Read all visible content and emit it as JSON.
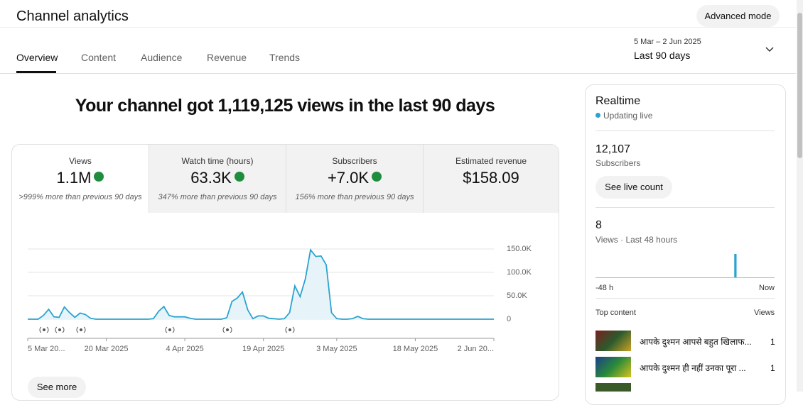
{
  "header": {
    "title": "Channel analytics",
    "button": "Advanced mode"
  },
  "tabs": [
    "Overview",
    "Content",
    "Audience",
    "Revenue",
    "Trends"
  ],
  "date_range": {
    "dates": "5 Mar – 2 Jun 2025",
    "label": "Last 90 days"
  },
  "headline": "Your channel got 1,119,125 views in the last 90 days",
  "metrics": [
    {
      "label": "Views",
      "value": "1.1M",
      "change": ">999% more than previous 90 days"
    },
    {
      "label": "Watch time (hours)",
      "value": "63.3K",
      "change": "347% more than previous 90 days"
    },
    {
      "label": "Subscribers",
      "value": "+7.0K",
      "change": "156% more than previous 90 days"
    },
    {
      "label": "Estimated revenue",
      "value": "$158.09"
    }
  ],
  "chart_data": {
    "type": "line",
    "color": "#2ba3cf",
    "categories": [
      "2025-03-05",
      "2025-03-06",
      "2025-03-07",
      "2025-03-08",
      "2025-03-09",
      "2025-03-10",
      "2025-03-11",
      "2025-03-12",
      "2025-03-13",
      "2025-03-14",
      "2025-03-15",
      "2025-03-16",
      "2025-03-17",
      "2025-03-18",
      "2025-03-19",
      "2025-03-20",
      "2025-03-21",
      "2025-03-22",
      "2025-03-23",
      "2025-03-24",
      "2025-03-25",
      "2025-03-26",
      "2025-03-27",
      "2025-03-28",
      "2025-03-29",
      "2025-03-30",
      "2025-03-31",
      "2025-04-01",
      "2025-04-02",
      "2025-04-03",
      "2025-04-04",
      "2025-04-05",
      "2025-04-06",
      "2025-04-07",
      "2025-04-08",
      "2025-04-09",
      "2025-04-10",
      "2025-04-11",
      "2025-04-12",
      "2025-04-13",
      "2025-04-14",
      "2025-04-15",
      "2025-04-16",
      "2025-04-17",
      "2025-04-18",
      "2025-04-19",
      "2025-04-20",
      "2025-04-21",
      "2025-04-22",
      "2025-04-23",
      "2025-04-24",
      "2025-04-25",
      "2025-04-26",
      "2025-04-27",
      "2025-04-28",
      "2025-04-29",
      "2025-04-30",
      "2025-05-01",
      "2025-05-02",
      "2025-05-03",
      "2025-05-04",
      "2025-05-05",
      "2025-05-06",
      "2025-05-07",
      "2025-05-08",
      "2025-05-09",
      "2025-05-10",
      "2025-05-11",
      "2025-05-12",
      "2025-05-13",
      "2025-05-14",
      "2025-05-15",
      "2025-05-16",
      "2025-05-17",
      "2025-05-18",
      "2025-05-19",
      "2025-05-20",
      "2025-05-21",
      "2025-05-22",
      "2025-05-23",
      "2025-05-24",
      "2025-05-25",
      "2025-05-26",
      "2025-05-27",
      "2025-05-28",
      "2025-05-29",
      "2025-05-30",
      "2025-05-31",
      "2025-06-01",
      "2025-06-02"
    ],
    "values": [
      0,
      0,
      0,
      8000,
      21000,
      5000,
      4000,
      26000,
      14000,
      4000,
      13000,
      10000,
      2000,
      0,
      0,
      0,
      0,
      0,
      0,
      0,
      0,
      0,
      0,
      0,
      1000,
      17000,
      27000,
      8000,
      5000,
      5000,
      5000,
      2000,
      0,
      0,
      0,
      0,
      0,
      0,
      3000,
      38000,
      45000,
      58000,
      20000,
      1000,
      7000,
      7000,
      2000,
      1000,
      0,
      1000,
      14000,
      71000,
      48000,
      86000,
      148000,
      134000,
      135000,
      116000,
      14000,
      1000,
      0,
      0,
      1000,
      6000,
      1000,
      0,
      0,
      0,
      0,
      0,
      0,
      0,
      0,
      0,
      0,
      0,
      0,
      0,
      0,
      0,
      0,
      0,
      0,
      0,
      0,
      0,
      0,
      0,
      0,
      0
    ],
    "xticks": [
      {
        "value": "2025-03-05",
        "label": "5 Mar 20..."
      },
      {
        "value": "2025-03-20",
        "label": "20 Mar 2025"
      },
      {
        "value": "2025-04-04",
        "label": "4 Apr 2025"
      },
      {
        "value": "2025-04-19",
        "label": "19 Apr 2025"
      },
      {
        "value": "2025-05-03",
        "label": "3 May 2025"
      },
      {
        "value": "2025-05-18",
        "label": "18 May 2025"
      },
      {
        "value": "2025-06-02",
        "label": "2 Jun 20..."
      }
    ],
    "ylim": [
      0,
      150000
    ],
    "yticks": [
      0,
      {
        "value": 50000,
        "label": "50.0K"
      },
      {
        "value": 100000,
        "label": "100.0K"
      },
      {
        "value": 150000,
        "label": "150.0K"
      }
    ],
    "grid": true
  },
  "see_more": "See more",
  "realtime": {
    "title": "Realtime",
    "status": "Updating live",
    "subscribers": "12,107",
    "subscribers_label": "Subscribers",
    "button": "See live count",
    "views": "8",
    "views_label": "Views · Last 48 hours",
    "bars": [
      0,
      0,
      0,
      0,
      0,
      0,
      0,
      0,
      0,
      0,
      0,
      0,
      0,
      0,
      0,
      0,
      0,
      0,
      0,
      0,
      0,
      0,
      0,
      0,
      0,
      0,
      0,
      0,
      0,
      0,
      0,
      0,
      0,
      0,
      0,
      0,
      0,
      8,
      0,
      0,
      0,
      0,
      0,
      0,
      0,
      0,
      0,
      0
    ],
    "start": "-48 h",
    "end": "Now",
    "top_content": "Top content",
    "top_views": "Views",
    "items": [
      {
        "title": "आपके दुश्मन आपसे बहुत खिलाफ...",
        "views": "1"
      },
      {
        "title": "आपके दुश्मन ही नहीं उनका पूरा ...",
        "views": "1"
      }
    ]
  }
}
